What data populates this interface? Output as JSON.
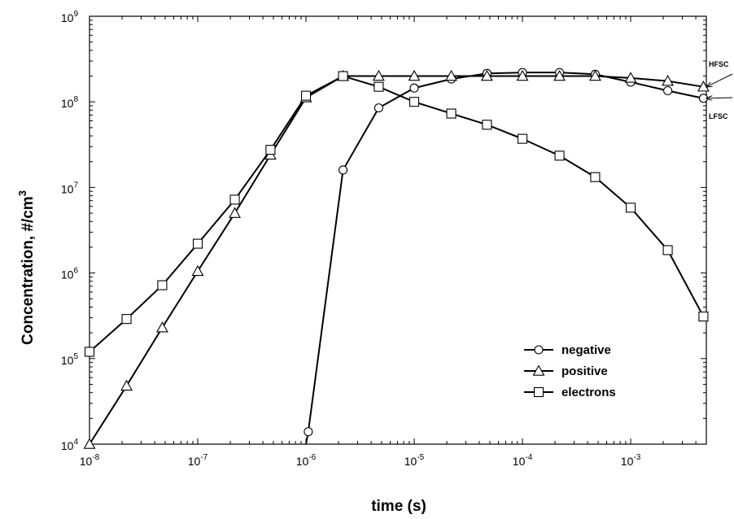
{
  "chart_data": {
    "type": "line",
    "xlabel": "time (s)",
    "ylabel": "Concentration, #/cm",
    "ylabel_superscript": "3",
    "x_scale": "log",
    "y_scale": "log",
    "xlim": [
      1e-08,
      0.005
    ],
    "ylim": [
      10000.0,
      1000000000.0
    ],
    "x_ticks": [
      {
        "base": "10",
        "exp": "-8",
        "value": 1e-08
      },
      {
        "base": "10",
        "exp": "-7",
        "value": 1e-07
      },
      {
        "base": "10",
        "exp": "-6",
        "value": 1e-06
      },
      {
        "base": "10",
        "exp": "-5",
        "value": 1e-05
      },
      {
        "base": "10",
        "exp": "-4",
        "value": 0.0001
      },
      {
        "base": "10",
        "exp": "-3",
        "value": 0.001
      }
    ],
    "y_ticks": [
      {
        "base": "10",
        "exp": "4",
        "value": 10000.0
      },
      {
        "base": "10",
        "exp": "5",
        "value": 100000.0
      },
      {
        "base": "10",
        "exp": "6",
        "value": 1000000.0
      },
      {
        "base": "10",
        "exp": "7",
        "value": 10000000.0
      },
      {
        "base": "10",
        "exp": "8",
        "value": 100000000.0
      },
      {
        "base": "10",
        "exp": "9",
        "value": 1000000000.0
      }
    ],
    "grid": false,
    "legend_position": "bottom-right",
    "series": [
      {
        "name": "negative",
        "marker": "circle",
        "points": [
          [
            1.05e-06,
            14000.0
          ],
          [
            2.2e-06,
            16000000.0
          ],
          [
            4.7e-06,
            85000000.0
          ],
          [
            1e-05,
            145000000.0
          ],
          [
            2.2e-05,
            185000000.0
          ],
          [
            4.7e-05,
            215000000.0
          ],
          [
            0.0001,
            220000000.0
          ],
          [
            0.00022,
            220000000.0
          ],
          [
            0.00047,
            210000000.0
          ],
          [
            0.001,
            170000000.0
          ],
          [
            0.0022,
            135000000.0
          ],
          [
            0.0047,
            110000000.0
          ]
        ],
        "line_start": [
          1e-06,
          10000.0
        ]
      },
      {
        "name": "positive",
        "marker": "triangle",
        "points": [
          [
            1e-08,
            10000.0
          ],
          [
            2.2e-08,
            48000.0
          ],
          [
            4.7e-08,
            230000.0
          ],
          [
            1e-07,
            1050000.0
          ],
          [
            2.2e-07,
            5000000.0
          ],
          [
            4.7e-07,
            24000000.0
          ],
          [
            1e-06,
            112000000.0
          ],
          [
            2.2e-06,
            200000000.0
          ],
          [
            4.7e-06,
            200000000.0
          ],
          [
            1e-05,
            200000000.0
          ],
          [
            2.2e-05,
            200000000.0
          ],
          [
            4.7e-05,
            200000000.0
          ],
          [
            0.0001,
            200000000.0
          ],
          [
            0.00022,
            200000000.0
          ],
          [
            0.00047,
            200000000.0
          ],
          [
            0.001,
            190000000.0
          ],
          [
            0.0022,
            175000000.0
          ],
          [
            0.0047,
            150000000.0
          ]
        ]
      },
      {
        "name": "electrons",
        "marker": "square",
        "points": [
          [
            1e-08,
            120000.0
          ],
          [
            2.2e-08,
            290000.0
          ],
          [
            4.7e-08,
            720000.0
          ],
          [
            1e-07,
            2200000.0
          ],
          [
            2.2e-07,
            7200000.0
          ],
          [
            4.7e-07,
            27500000.0
          ],
          [
            1e-06,
            118000000.0
          ],
          [
            2.2e-06,
            200000000.0
          ],
          [
            4.7e-06,
            150000000.0
          ],
          [
            1e-05,
            100000000.0
          ],
          [
            2.2e-05,
            73000000.0
          ],
          [
            4.7e-05,
            54000000.0
          ],
          [
            0.0001,
            37000000.0
          ],
          [
            0.00022,
            23500000.0
          ],
          [
            0.00047,
            13200000.0
          ],
          [
            0.001,
            5800000.0
          ],
          [
            0.0022,
            1850000.0
          ],
          [
            0.0047,
            310000.0
          ]
        ]
      }
    ],
    "annotations": [
      {
        "text": "HFSC",
        "points_to": [
          0.0047,
          150000000.0
        ]
      },
      {
        "text": "LFSC",
        "points_to": [
          0.0047,
          110000000.0
        ]
      }
    ]
  }
}
